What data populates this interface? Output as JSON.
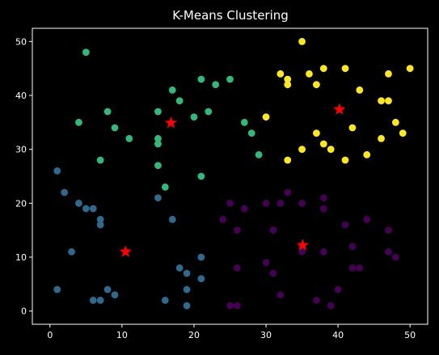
{
  "chart_data": {
    "type": "scatter",
    "title": "K-Means Clustering",
    "xlabel": "",
    "ylabel": "",
    "xlim": [
      -2.45,
      52.45
    ],
    "ylim": [
      -2.45,
      52.45
    ],
    "xticks": [
      0,
      10,
      20,
      30,
      40,
      50
    ],
    "yticks": [
      0,
      10,
      20,
      30,
      40,
      50
    ],
    "grid": false,
    "legend": "none",
    "colors": {
      "background": "#000000",
      "axes": "#ffffff",
      "centroid": "#ff0000"
    },
    "series": [
      {
        "color": "#440154",
        "points": [
          [
            25,
            20
          ],
          [
            27,
            19
          ],
          [
            24,
            17
          ],
          [
            26,
            15
          ],
          [
            30,
            20
          ],
          [
            32,
            20
          ],
          [
            33,
            22
          ],
          [
            35,
            20
          ],
          [
            38,
            21
          ],
          [
            38,
            19
          ],
          [
            41,
            16
          ],
          [
            44,
            17
          ],
          [
            31,
            15
          ],
          [
            35,
            12
          ],
          [
            35,
            11
          ],
          [
            38,
            11
          ],
          [
            42,
            12
          ],
          [
            47,
            15
          ],
          [
            47,
            11
          ],
          [
            48,
            10
          ],
          [
            42,
            8
          ],
          [
            43,
            8
          ],
          [
            30,
            9
          ],
          [
            31,
            7
          ],
          [
            26,
            8
          ],
          [
            32,
            3
          ],
          [
            37,
            2
          ],
          [
            39,
            1
          ],
          [
            40,
            4
          ],
          [
            25,
            1
          ],
          [
            26,
            1
          ]
        ]
      },
      {
        "color": "#31688e",
        "points": [
          [
            1,
            26
          ],
          [
            2,
            22
          ],
          [
            4,
            20
          ],
          [
            5,
            19
          ],
          [
            6,
            19
          ],
          [
            7,
            17
          ],
          [
            7,
            16
          ],
          [
            15,
            21
          ],
          [
            17,
            17
          ],
          [
            3,
            11
          ],
          [
            1,
            4
          ],
          [
            6,
            2
          ],
          [
            7,
            2
          ],
          [
            8,
            4
          ],
          [
            9,
            3
          ],
          [
            16,
            2
          ],
          [
            18,
            8
          ],
          [
            19,
            7
          ],
          [
            19,
            4
          ],
          [
            19,
            1
          ],
          [
            21,
            10
          ],
          [
            21,
            6
          ]
        ]
      },
      {
        "color": "#35b779",
        "points": [
          [
            5,
            48
          ],
          [
            4,
            35
          ],
          [
            8,
            37
          ],
          [
            9,
            34
          ],
          [
            7,
            28
          ],
          [
            11,
            32
          ],
          [
            15,
            37
          ],
          [
            15,
            32
          ],
          [
            15,
            31
          ],
          [
            15,
            27
          ],
          [
            16,
            23
          ],
          [
            17,
            41
          ],
          [
            18,
            39
          ],
          [
            20,
            36
          ],
          [
            21,
            43
          ],
          [
            22,
            37
          ],
          [
            23,
            42
          ],
          [
            25,
            43
          ],
          [
            21,
            25
          ],
          [
            27,
            35
          ],
          [
            28,
            33
          ],
          [
            29,
            29
          ]
        ]
      },
      {
        "color": "#fde725",
        "points": [
          [
            35,
            50
          ],
          [
            32,
            44
          ],
          [
            33,
            43
          ],
          [
            33,
            42
          ],
          [
            36,
            44
          ],
          [
            37,
            42
          ],
          [
            38,
            45
          ],
          [
            41,
            45
          ],
          [
            43,
            41
          ],
          [
            46,
            39
          ],
          [
            47,
            39
          ],
          [
            47,
            44
          ],
          [
            50,
            45
          ],
          [
            30,
            36
          ],
          [
            33,
            28
          ],
          [
            35,
            30
          ],
          [
            37,
            33
          ],
          [
            38,
            31
          ],
          [
            39,
            30
          ],
          [
            41,
            28
          ],
          [
            42,
            34
          ],
          [
            44,
            29
          ],
          [
            46,
            32
          ],
          [
            48,
            35
          ],
          [
            49,
            33
          ]
        ]
      }
    ],
    "centroids": [
      [
        10.5,
        11
      ],
      [
        16.8,
        34.9
      ],
      [
        35.1,
        12.2
      ],
      [
        40.2,
        37.4
      ]
    ]
  }
}
